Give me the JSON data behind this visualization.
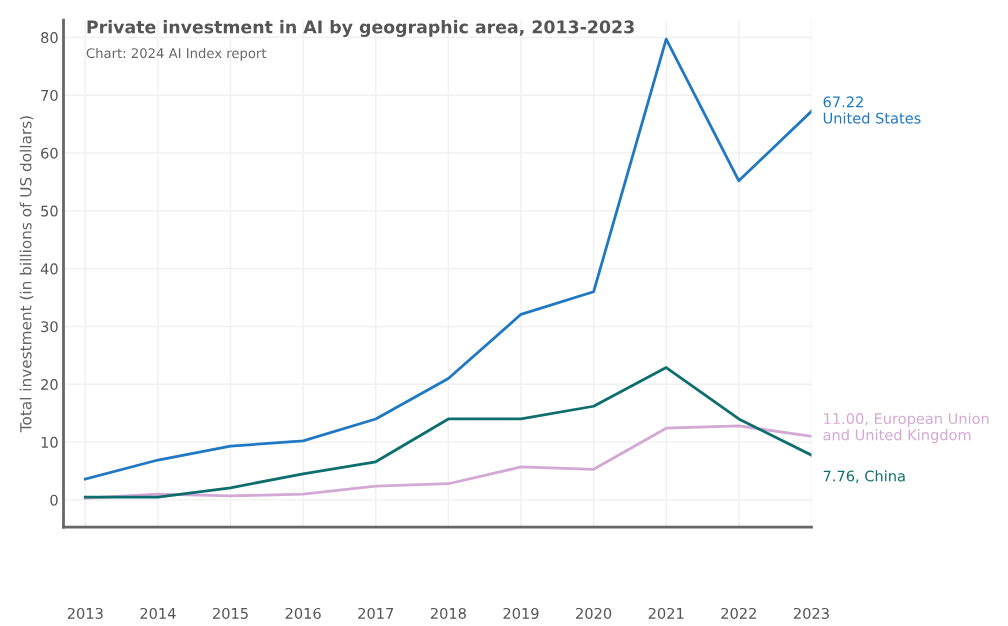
{
  "chart_data": {
    "type": "line",
    "title": "Private investment in AI by geographic area, 2013-2023",
    "subtitle": "Chart: 2024 AI Index report",
    "ylabel": "Total investment (in billions of US dollars)",
    "categories": [
      "2013",
      "2014",
      "2015",
      "2016",
      "2017",
      "2018",
      "2019",
      "2020",
      "2021",
      "2022",
      "2023"
    ],
    "series": [
      {
        "color": "#1f78c1",
        "values": [
          3.6,
          6.9,
          9.3,
          10.2,
          14.0,
          21.0,
          32.1,
          36.0,
          79.7,
          55.2,
          67.22
        ]
      },
      {
        "color": "#d4a8d4",
        "values": [
          0.3,
          1.0,
          0.7,
          1.0,
          2.4,
          2.8,
          5.7,
          5.3,
          12.4,
          12.8,
          11.0
        ]
      },
      {
        "color": "#0e6e6e",
        "values": [
          0.5,
          0.5,
          2.1,
          4.5,
          6.6,
          14.0,
          14.0,
          16.2,
          22.9,
          14.0,
          7.76
        ]
      }
    ],
    "annotations": [
      {
        "text": "67.22\nUnited States",
        "x": "2023",
        "y": 67.22
      },
      {
        "text": "11.00, European Union and United Kingdom",
        "x": "2023",
        "y": 11.0
      },
      {
        "text": "7.76, China",
        "x": "2023",
        "y": 7.76
      }
    ],
    "ylim": [
      -4.7,
      83
    ],
    "yticks": [
      0,
      10,
      20,
      30,
      40,
      50,
      60,
      70,
      80
    ],
    "grid": true,
    "marker": "none",
    "line_style": "solid"
  }
}
